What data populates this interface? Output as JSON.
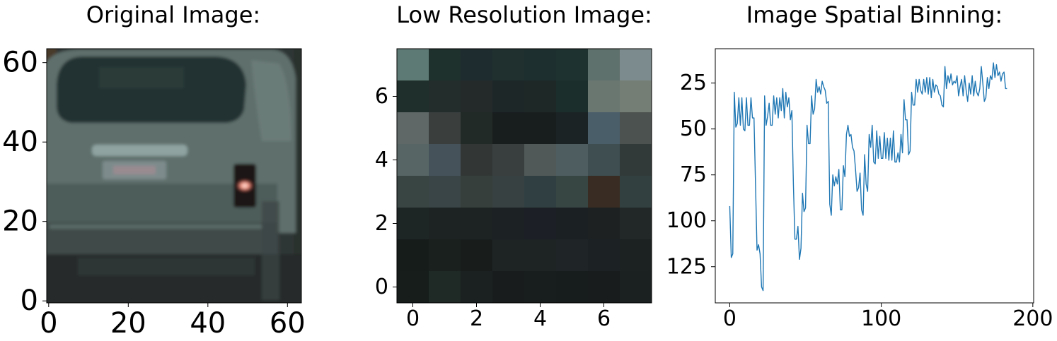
{
  "figure": {
    "panels": [
      {
        "id": "original",
        "title": "Original Image:"
      },
      {
        "id": "lowres",
        "title": "Low Resolution Image:"
      },
      {
        "id": "binning",
        "title": "Image Spatial Binning:"
      }
    ]
  },
  "chart_data": [
    {
      "type": "image",
      "title": "Original Image:",
      "description_kind": "photo of rear of a grey van",
      "xticks": [
        0,
        20,
        40,
        60
      ],
      "yticks": [
        0,
        20,
        40,
        60
      ],
      "xlim": [
        -0.5,
        63.5
      ],
      "ylim": [
        63.5,
        -0.5
      ]
    },
    {
      "type": "heatmap",
      "title": "Low Resolution Image:",
      "xticks": [
        0,
        2,
        4,
        6
      ],
      "yticks": [
        0,
        2,
        4,
        6
      ],
      "xlim": [
        -0.5,
        7.5
      ],
      "ylim": [
        7.5,
        -0.5
      ],
      "pixels": [
        [
          "#5e7a74",
          "#1e312c",
          "#1e2b2f",
          "#1f302f",
          "#1e2f2f",
          "#1e3230",
          "#5f716c",
          "#7c8b8d"
        ],
        [
          "#1f2f2c",
          "#222d2c",
          "#242a2a",
          "#1e2728",
          "#1e2827",
          "#1c2e2b",
          "#6a7771",
          "#747e74"
        ],
        [
          "#5f6867",
          "#3a3f3e",
          "#222a27",
          "#181e1e",
          "#181e1e",
          "#1b2324",
          "#4a5e6a",
          "#4c5250"
        ],
        [
          "#576665",
          "#46525a",
          "#323736",
          "#393e3e",
          "#515958",
          "#4e5e60",
          "#3e4e51",
          "#313a38"
        ],
        [
          "#384543",
          "#394546",
          "#363f3b",
          "#374142",
          "#304042",
          "#374543",
          "#392d23",
          "#324140"
        ],
        [
          "#1e2525",
          "#1d2323",
          "#1d2322",
          "#1c2124",
          "#1c1f25",
          "#1b2122",
          "#1d2122",
          "#222727"
        ],
        [
          "#151c1a",
          "#1a201e",
          "#181d1c",
          "#1e2324",
          "#1e2323",
          "#1f2527",
          "#1c2123",
          "#1b2221"
        ],
        [
          "#161d1b",
          "#1f2925",
          "#1b2020",
          "#181c1d",
          "#181d1d",
          "#171c1c",
          "#181c1c",
          "#1b2020"
        ]
      ]
    },
    {
      "type": "line",
      "title": "Image Spatial Binning:",
      "xlim": [
        -9.55,
        200.55
      ],
      "ylim": [
        6.3,
        144.7
      ],
      "xticks": [
        0,
        100,
        200
      ],
      "yticks": [
        25,
        50,
        75,
        100,
        125
      ],
      "color": "#1f77b4",
      "series": [
        {
          "x_start": 0,
          "values": [
            92,
            120,
            118,
            30,
            49,
            47,
            33,
            48,
            33,
            50,
            51,
            33,
            48,
            48,
            33,
            44,
            44,
            80,
            116,
            113,
            118,
            136,
            138,
            32,
            48,
            43,
            36,
            48,
            48,
            32,
            42,
            33,
            44,
            33,
            40,
            28,
            44,
            30,
            38,
            33,
            45,
            40,
            80,
            110,
            110,
            103,
            121,
            115,
            85,
            95,
            93,
            48,
            58,
            58,
            32,
            42,
            39,
            23,
            30,
            27,
            31,
            24,
            27,
            29,
            36,
            35,
            91,
            97,
            75,
            81,
            76,
            80,
            72,
            94,
            94,
            70,
            76,
            53,
            48,
            54,
            53,
            60,
            62,
            72,
            84,
            82,
            74,
            94,
            97,
            64,
            80,
            84,
            53,
            60,
            48,
            68,
            69,
            51,
            66,
            54,
            66,
            66,
            52,
            66,
            55,
            67,
            55,
            67,
            51,
            68,
            68,
            63,
            68,
            53,
            63,
            34,
            45,
            45,
            64,
            62,
            30,
            37,
            37,
            23,
            30,
            23,
            29,
            31,
            23,
            30,
            22,
            31,
            22,
            33,
            23,
            30,
            26,
            27,
            31,
            32,
            37,
            38,
            16,
            28,
            21,
            25,
            20,
            26,
            24,
            25,
            21,
            32,
            27,
            23,
            32,
            21,
            29,
            35,
            25,
            31,
            21,
            32,
            24,
            30,
            32,
            28,
            16,
            25,
            35,
            33,
            22,
            28,
            21,
            23,
            14,
            22,
            15,
            21,
            19,
            24,
            20,
            19,
            28,
            28
          ]
        }
      ]
    }
  ]
}
